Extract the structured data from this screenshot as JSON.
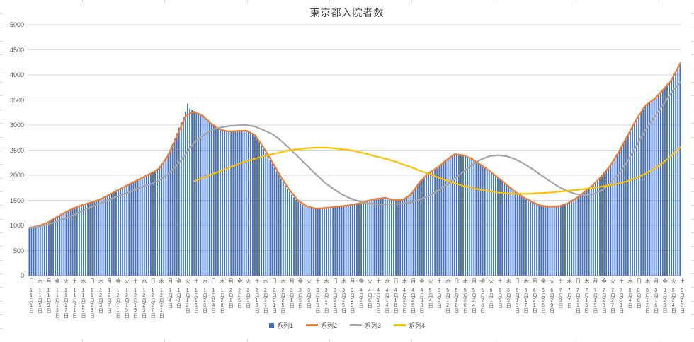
{
  "title": "東京都入院者数",
  "y_axis": {
    "min": 0,
    "max": 5000,
    "step": 500,
    "labels": [
      "0",
      "500",
      "1000",
      "1500",
      "2000",
      "2500",
      "3000",
      "3500",
      "4000",
      "4500",
      "5000"
    ]
  },
  "x_axis": {
    "label_interval_days": 4,
    "labels": [
      "日 11月1日",
      "木 11月5日",
      "月 11月9日",
      "金 11月13日",
      "火 11月17日",
      "土 11月21日",
      "水 11月25日",
      "日 11月29日",
      "木 12月3日",
      "月 12月7日",
      "金 12月11日",
      "火 12月15日",
      "土 12月19日",
      "水 12月23日",
      "日 12月27日",
      "木 12月31日",
      "月 1月4日",
      "金 1月8日",
      "火 1月12日",
      "土 1月16日",
      "水 1月20日",
      "日 1月24日",
      "木 1月28日",
      "月 2月1日",
      "金 2月5日",
      "火 2月9日",
      "土 2月13日",
      "水 2月17日",
      "日 2月21日",
      "木 2月25日",
      "月 3月1日",
      "金 3月5日",
      "火 3月9日",
      "土 3月13日",
      "水 3月17日",
      "日 3月21日",
      "木 3月25日",
      "月 3月29日",
      "金 4月2日",
      "火 4月6日",
      "土 4月10日",
      "水 4月14日",
      "日 4月18日",
      "木 4月22日",
      "月 4月26日",
      "金 4月30日",
      "火 5月4日",
      "土 5月8日",
      "水 5月12日",
      "日 5月16日",
      "木 5月20日",
      "月 5月24日",
      "金 5月28日",
      "火 6月1日",
      "土 6月5日",
      "水 6月9日",
      "日 6月13日",
      "木 6月17日",
      "月 6月21日",
      "金 6月25日",
      "火 6月29日",
      "土 7月3日",
      "水 7月7日",
      "日 7月11日",
      "木 7月15日",
      "月 7月19日",
      "金 7月23日",
      "火 7月27日",
      "土 7月31日",
      "水 8月4日",
      "日 8月8日",
      "木 8月12日",
      "月 8月16日",
      "金 8月20日",
      "火 8月24日",
      "土 8月28日"
    ]
  },
  "legend": [
    "系列1",
    "系列2",
    "系列3",
    "系列4"
  ],
  "chart_data": {
    "type": "combo",
    "title": "東京都入院者数",
    "xlabel": "",
    "ylabel": "",
    "ylim": [
      0,
      5000
    ],
    "grid": true,
    "legend_position": "bottom",
    "x_start_label": "11月1日",
    "x_step": "1 day",
    "bars": {
      "name": "系列1",
      "type": "bar",
      "color": "#4472C4",
      "values": [
        950,
        945,
        955,
        970,
        985,
        1000,
        1020,
        1030,
        1050,
        1070,
        1095,
        1120,
        1150,
        1175,
        1200,
        1225,
        1250,
        1275,
        1300,
        1320,
        1340,
        1355,
        1370,
        1385,
        1400,
        1415,
        1430,
        1445,
        1455,
        1470,
        1480,
        1495,
        1510,
        1530,
        1555,
        1570,
        1590,
        1615,
        1640,
        1665,
        1690,
        1710,
        1730,
        1750,
        1775,
        1800,
        1820,
        1845,
        1870,
        1890,
        1910,
        1935,
        1955,
        1975,
        1995,
        2020,
        2040,
        2060,
        2090,
        2130,
        2180,
        2230,
        2280,
        2350,
        2430,
        2520,
        2620,
        2730,
        2840,
        2950,
        3060,
        3160,
        3270,
        3430,
        3330,
        3300,
        3280,
        3250,
        3230,
        3200,
        3170,
        3130,
        3090,
        3050,
        3010,
        2980,
        2950,
        2920,
        2900,
        2890,
        2880,
        2870,
        2865,
        2870,
        2880,
        2885,
        2890,
        2895,
        2900,
        2895,
        2890,
        2880,
        2860,
        2820,
        2770,
        2720,
        2660,
        2590,
        2520,
        2450,
        2380,
        2300,
        2230,
        2150,
        2080,
        2000,
        1930,
        1860,
        1790,
        1730,
        1670,
        1610,
        1560,
        1510,
        1470,
        1440,
        1410,
        1390,
        1370,
        1355,
        1345,
        1335,
        1330,
        1330,
        1335,
        1340,
        1345,
        1350,
        1355,
        1360,
        1365,
        1370,
        1375,
        1380,
        1385,
        1390,
        1395,
        1400,
        1405,
        1415,
        1425,
        1435,
        1445,
        1455,
        1465,
        1475,
        1490,
        1505,
        1515,
        1525,
        1535,
        1545,
        1550,
        1555,
        1550,
        1540,
        1525,
        1510,
        1500,
        1490,
        1485,
        1495,
        1520,
        1545,
        1570,
        1600,
        1650,
        1700,
        1760,
        1820,
        1880,
        1930,
        1970,
        2000,
        2030,
        2060,
        2090,
        2120,
        2150,
        2185,
        2220,
        2260,
        2300,
        2345,
        2380,
        2405,
        2420,
        2430,
        2425,
        2415,
        2400,
        2380,
        2360,
        2340,
        2320,
        2295,
        2270,
        2240,
        2210,
        2180,
        2150,
        2120,
        2090,
        2055,
        2020,
        1985,
        1950,
        1915,
        1880,
        1845,
        1810,
        1775,
        1740,
        1705,
        1670,
        1640,
        1610,
        1580,
        1555,
        1530,
        1505,
        1480,
        1460,
        1440,
        1425,
        1410,
        1395,
        1385,
        1375,
        1370,
        1365,
        1365,
        1365,
        1370,
        1380,
        1390,
        1405,
        1420,
        1440,
        1460,
        1485,
        1510,
        1540,
        1570,
        1600,
        1635,
        1670,
        1705,
        1740,
        1775,
        1815,
        1855,
        1900,
        1945,
        1990,
        2040,
        2090,
        2145,
        2205,
        2270,
        2340,
        2415,
        2490,
        2570,
        2650,
        2730,
        2810,
        2890,
        2970,
        3050,
        3130,
        3200,
        3270,
        3330,
        3390,
        3430,
        3460,
        3490,
        3520,
        3560,
        3600,
        3650,
        3700,
        3750,
        3800,
        3850,
        3900,
        3960,
        4030,
        4110,
        4250
      ]
    },
    "lines": [
      {
        "name": "系列2",
        "type": "line",
        "color": "#ED7D31",
        "start_index": 0,
        "step_days": 4,
        "values": [
          955,
          985,
          1050,
          1150,
          1250,
          1335,
          1400,
          1455,
          1510,
          1595,
          1685,
          1775,
          1865,
          1950,
          2035,
          2140,
          2400,
          2790,
          3180,
          3270,
          3180,
          3020,
          2905,
          2870,
          2885,
          2890,
          2800,
          2550,
          2260,
          1960,
          1700,
          1490,
          1380,
          1335,
          1345,
          1365,
          1385,
          1405,
          1440,
          1490,
          1530,
          1550,
          1505,
          1505,
          1620,
          1870,
          2040,
          2150,
          2295,
          2420,
          2400,
          2325,
          2210,
          2090,
          1950,
          1810,
          1670,
          1555,
          1460,
          1395,
          1370,
          1380,
          1440,
          1540,
          1670,
          1815,
          1990,
          2205,
          2490,
          2810,
          3130,
          3390,
          3520,
          3700,
          3900,
          4230
        ]
      },
      {
        "name": "系列3",
        "type": "line",
        "color": "#A5A5A5",
        "start_index": 0,
        "step_days": 4,
        "values": [
          950,
          975,
          1010,
          1070,
          1130,
          1200,
          1280,
          1360,
          1430,
          1500,
          1570,
          1630,
          1700,
          1770,
          1830,
          1900,
          2030,
          2200,
          2420,
          2650,
          2790,
          2900,
          2950,
          2980,
          2995,
          3000,
          2970,
          2900,
          2820,
          2690,
          2530,
          2360,
          2190,
          2020,
          1860,
          1730,
          1620,
          1540,
          1480,
          1440,
          1425,
          1420,
          1425,
          1435,
          1460,
          1520,
          1580,
          1680,
          1800,
          1930,
          2070,
          2200,
          2310,
          2380,
          2400,
          2380,
          2320,
          2230,
          2120,
          2000,
          1880,
          1770,
          1680,
          1625,
          1600,
          1620,
          1700,
          1850,
          2050,
          2300,
          2600,
          2900,
          3150,
          3400,
          3650,
          3850
        ]
      },
      {
        "name": "系列4",
        "type": "line",
        "color": "#FFC000",
        "start_index": 19,
        "step_days": 4,
        "values": [
          1880,
          1950,
          2020,
          2080,
          2150,
          2220,
          2280,
          2330,
          2380,
          2420,
          2460,
          2500,
          2520,
          2540,
          2550,
          2550,
          2540,
          2520,
          2500,
          2460,
          2420,
          2370,
          2330,
          2280,
          2220,
          2160,
          2090,
          2030,
          1960,
          1900,
          1840,
          1790,
          1750,
          1710,
          1680,
          1655,
          1640,
          1630,
          1630,
          1635,
          1645,
          1655,
          1670,
          1690,
          1705,
          1725,
          1750,
          1775,
          1805,
          1840,
          1890,
          1950,
          2030,
          2130,
          2250,
          2390,
          2560
        ]
      }
    ]
  }
}
